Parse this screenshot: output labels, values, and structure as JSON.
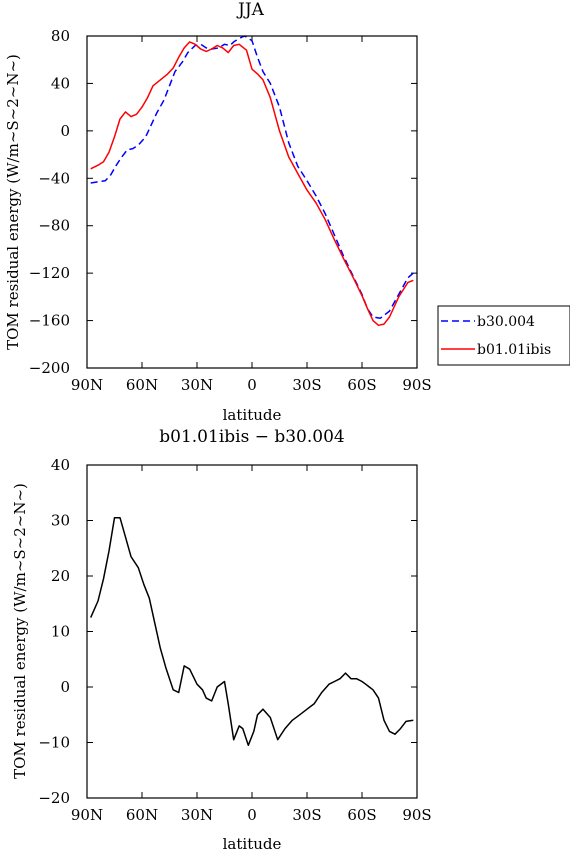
{
  "chart_data": [
    {
      "type": "line",
      "title": "JJA",
      "xlabel": "latitude",
      "ylabel": "TOM residual energy (W/m~S~2~N~)",
      "xlim": [
        90,
        -90
      ],
      "ylim": [
        -200,
        80
      ],
      "x_ticks": [
        90,
        60,
        30,
        0,
        -30,
        -60,
        -90
      ],
      "x_tick_labels": [
        "90N",
        "60N",
        "30N",
        "0",
        "30S",
        "60S",
        "90S"
      ],
      "y_ticks": [
        -200,
        -160,
        -120,
        -80,
        -40,
        0,
        40,
        80
      ],
      "y_tick_labels": [
        "−200",
        "−160",
        "−120",
        "−80",
        "−40",
        "0",
        "40",
        "80"
      ],
      "legend_position": "right, outside plot",
      "series": [
        {
          "name": "b30.004",
          "color": "#0000ff",
          "style": "dashed",
          "x": [
            88,
            84,
            80,
            77,
            74,
            71,
            68,
            65,
            62,
            58,
            55,
            52,
            48,
            45,
            42,
            38,
            35,
            31,
            28,
            25,
            22,
            18,
            15,
            12,
            10,
            7,
            4,
            0,
            -3,
            -6,
            -10,
            -15,
            -20,
            -25,
            -30,
            -35,
            -40,
            -45,
            -50,
            -55,
            -60,
            -63,
            -66,
            -70,
            -75,
            -80,
            -85,
            -88
          ],
          "y": [
            -44,
            -43,
            -42,
            -37,
            -29,
            -22,
            -16,
            -15,
            -12,
            -5,
            5,
            15,
            26,
            38,
            50,
            58,
            66,
            72,
            73,
            70,
            69,
            70,
            73,
            72,
            75,
            78,
            80,
            76,
            62,
            50,
            40,
            20,
            -10,
            -30,
            -42,
            -55,
            -70,
            -88,
            -106,
            -122,
            -138,
            -150,
            -157,
            -158,
            -152,
            -138,
            -124,
            -120
          ]
        },
        {
          "name": "b01.01ibis",
          "color": "#ff0000",
          "style": "solid",
          "x": [
            88,
            84,
            81,
            78,
            75,
            72,
            69,
            66,
            63,
            60,
            57,
            54,
            50,
            46,
            43,
            40,
            37,
            34,
            31,
            28,
            25,
            22,
            19,
            16,
            13,
            10,
            7,
            3,
            0,
            -3,
            -6,
            -10,
            -15,
            -20,
            -25,
            -30,
            -35,
            -40,
            -45,
            -50,
            -55,
            -60,
            -63,
            -66,
            -69,
            -72,
            -75,
            -80,
            -85,
            -88
          ],
          "y": [
            -32,
            -29,
            -26,
            -18,
            -5,
            10,
            16,
            12,
            14,
            20,
            28,
            38,
            43,
            48,
            53,
            62,
            70,
            75,
            73,
            69,
            67,
            69,
            72,
            70,
            66,
            72,
            73,
            68,
            52,
            48,
            43,
            28,
            0,
            -22,
            -36,
            -50,
            -61,
            -75,
            -92,
            -108,
            -123,
            -139,
            -150,
            -160,
            -164,
            -163,
            -157,
            -140,
            -128,
            -126
          ]
        }
      ]
    },
    {
      "type": "line",
      "title": "b01.01ibis  −  b30.004",
      "xlabel": "latitude",
      "ylabel": "TOM residual energy (W/m~S~2~N~)",
      "xlim": [
        90,
        -90
      ],
      "ylim": [
        -20,
        40
      ],
      "x_ticks": [
        90,
        60,
        30,
        0,
        -30,
        -60,
        -90
      ],
      "x_tick_labels": [
        "90N",
        "60N",
        "30N",
        "0",
        "30S",
        "60S",
        "90S"
      ],
      "y_ticks": [
        -20,
        -10,
        0,
        10,
        20,
        30,
        40
      ],
      "y_tick_labels": [
        "−20",
        "−10",
        "0",
        "10",
        "20",
        "30",
        "40"
      ],
      "series": [
        {
          "color": "#000000",
          "style": "solid",
          "x": [
            88,
            84,
            81,
            78,
            75,
            72,
            69,
            66,
            62,
            59,
            56,
            53,
            50,
            47,
            43,
            40,
            37,
            34,
            30,
            27,
            25,
            22,
            19,
            15,
            13,
            10,
            7,
            5,
            2,
            -1,
            -3,
            -6,
            -10,
            -14,
            -18,
            -22,
            -26,
            -30,
            -34,
            -38,
            -42,
            -45,
            -48,
            -51,
            -54,
            -57,
            -60,
            -62,
            -64,
            -66,
            -69,
            -72,
            -75,
            -78,
            -81,
            -84,
            -88
          ],
          "y": [
            12.5,
            15.5,
            19.5,
            24.5,
            30.5,
            30.5,
            27,
            23.5,
            21.5,
            18.5,
            16,
            11.5,
            7,
            3.5,
            -0.5,
            -1,
            3.8,
            3.2,
            0.5,
            -0.5,
            -2,
            -2.5,
            0,
            1,
            -3,
            -9.5,
            -7,
            -7.5,
            -10.5,
            -8,
            -5,
            -4,
            -5.5,
            -9.5,
            -7.5,
            -6,
            -5,
            -4,
            -3,
            -1,
            0.5,
            1,
            1.5,
            2.5,
            1.5,
            1.5,
            1,
            0.5,
            0,
            -0.5,
            -2,
            -6,
            -8,
            -8.5,
            -7.5,
            -6.2,
            -6
          ]
        }
      ]
    }
  ]
}
